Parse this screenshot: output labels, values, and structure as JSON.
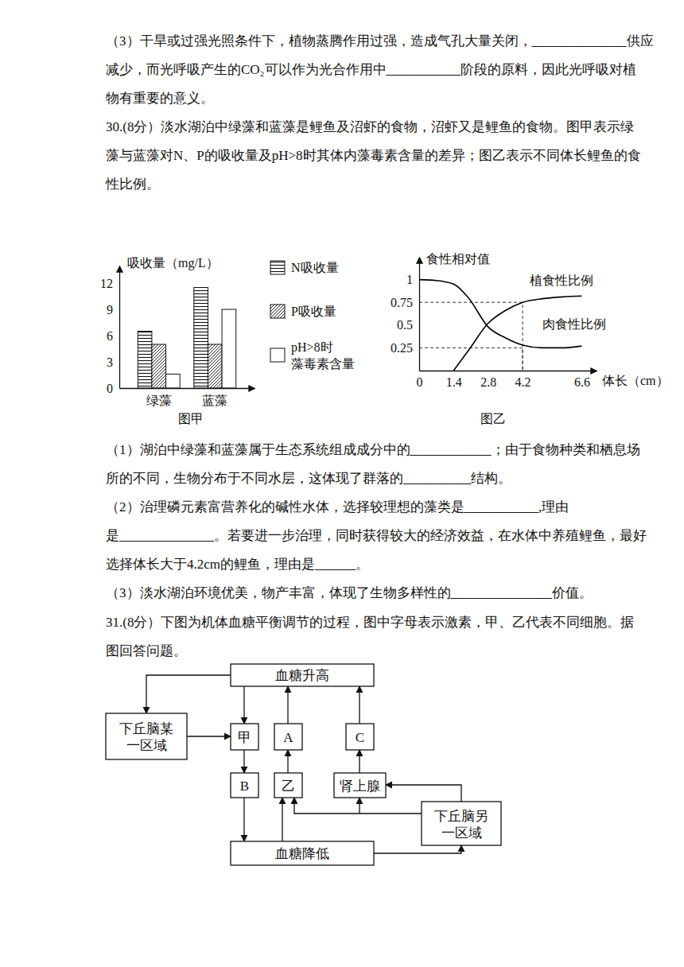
{
  "document": {
    "blocks": [
      {
        "lines": [
          "（3）干旱或过强光照条件下，植物蒸腾作用过强，造成气孔大量关闭，______________供应",
          "减少，而光呼吸产生的CO₂可以作为光合作用中___________阶段的原料，因此光呼吸对植",
          "物有重要的意义。",
          "30.(8分）淡水湖泊中绿藻和蓝藻是鲤鱼及沼虾的食物，沼虾又是鲤鱼的食物。图甲表示绿",
          "藻与蓝藻对N、P的吸收量及pH>8时其体内藻毒素含量的差异；图乙表示不同体长鲤鱼的食",
          "性比例。"
        ]
      },
      {
        "lines": [
          "（1）湖泊中绿藻和蓝藻属于生态系统组成成分中的____________；由于食物种类和栖息场",
          "所的不同，生物分布于不同水层，这体现了群落的__________结构。",
          "（2）治理磷元素富营养化的碱性水体，选择较理想的藻类是___________,理由",
          "是______________。若要进一步治理，同时获得较大的经济效益，在水体中养殖鲤鱼，最好",
          "选择体长大于4.2cm的鲤鱼，理由是______。",
          "（3）淡水湖泊环境优美，物产丰富，体现了生物多样性的_______________价值。"
        ]
      },
      {
        "lines": [
          "31.(8分）下图为机体血糖平衡调节的过程，图中字母表示激素，甲、乙代表不同细胞。据",
          "图回答问题。"
        ]
      }
    ]
  },
  "chart_data": [
    {
      "type": "bar",
      "title": "图甲",
      "y_label": "吸收量（mg/L）",
      "categories": [
        "绿藻",
        "蓝藻"
      ],
      "series": [
        {
          "name": "N吸收量",
          "color": "#ffffff",
          "values": [
            6.5,
            11.5
          ]
        },
        {
          "name": "P吸收量",
          "color": "#ffffff",
          "values": [
            5,
            5
          ]
        },
        {
          "name": "pH>8时\n藻毒素含量",
          "color": "#ffffff",
          "values": [
            1.6,
            9
          ]
        }
      ],
      "ylim": [
        0,
        14
      ],
      "yticks": [
        0,
        3,
        6,
        9,
        12
      ],
      "legend": "right"
    },
    {
      "type": "line",
      "title": "图乙",
      "x_label": "体长（cm）",
      "y_label": "食性相对值",
      "x": [
        0,
        0.7,
        1.4,
        2.0,
        2.8,
        3.5,
        4.2,
        5.0,
        5.8,
        6.6
      ],
      "series": [
        {
          "name": "植食性比例",
          "color": "#000000",
          "values": [
            null,
            null,
            0,
            0.22,
            0.52,
            0.66,
            0.75,
            0.79,
            0.81,
            0.82
          ]
        },
        {
          "name": "肉食性比例",
          "color": "#000000",
          "values": [
            1,
            0.99,
            0.95,
            0.8,
            0.48,
            0.36,
            0.28,
            0.25,
            0.25,
            0.27
          ]
        }
      ],
      "xlim": [
        0,
        7.2
      ],
      "xticks": [
        0,
        1.4,
        2.8,
        4.2,
        6.6
      ],
      "ylim": [
        0,
        1.25
      ],
      "yticks": [
        0.25,
        0.5,
        0.75,
        1
      ],
      "guides": [
        {
          "x": 4.2,
          "y": 0.75
        },
        {
          "x": 4.2,
          "y": 0.25
        }
      ]
    }
  ],
  "diagram": {
    "nodes": [
      {
        "label": "血糖升高"
      },
      {
        "label": "下丘脑某\n一区域"
      },
      {
        "label": "甲"
      },
      {
        "label": "B"
      },
      {
        "label": "A"
      },
      {
        "label": "乙"
      },
      {
        "label": "C"
      },
      {
        "label": "肾上腺"
      },
      {
        "label": "下丘脑另\n一区域"
      },
      {
        "label": "血糖降低"
      }
    ]
  }
}
